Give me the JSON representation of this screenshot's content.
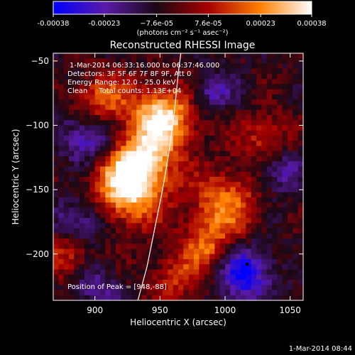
{
  "chart_data": {
    "type": "heatmap",
    "title": "Reconstructed RHESSI Image",
    "xlabel": "Heliocentric X (arcsec)",
    "ylabel": "Heliocentric Y (arcsec)",
    "xlim": [
      868,
      1060
    ],
    "ylim": [
      -236,
      -44
    ],
    "xticks": [
      900,
      950,
      1000,
      1050
    ],
    "yticks": [
      -200,
      -150,
      -100,
      -50
    ],
    "colorbar": {
      "min": -0.00038,
      "max": 0.00038,
      "tick_values": [
        -0.00038,
        -0.00023,
        -7.6e-05,
        7.6e-05,
        0.00023,
        0.00038
      ],
      "tick_labels": [
        "-0.00038",
        "-0.00023",
        "−7.6e-05",
        "7.6e-05",
        "0.00023",
        "0.00038"
      ],
      "units_text": "(photons cm⁻² s⁻¹ asec⁻²)"
    },
    "annotations": [
      "1-Mar-2014 06:33:16.000  to 06:37:46.000",
      "Detectors: 3F 5F 6F 7F 8F 9F, Att 0",
      "Energy Range: 12.0 - 25.0 keV",
      "Clean     Total counts: 1.13E+04"
    ],
    "peak_label": "Position of Peak = [948,-88]",
    "peak": [
      948,
      -88
    ],
    "limb_curve": [
      [
        933,
        -236
      ],
      [
        940,
        -210
      ],
      [
        946,
        -180
      ],
      [
        952,
        -150
      ],
      [
        957,
        -120
      ],
      [
        961,
        -90
      ],
      [
        964,
        -60
      ],
      [
        966,
        -44
      ]
    ],
    "hot_regions": [
      {
        "x": 952,
        "y": -95,
        "amp": 1.0,
        "r": 18
      },
      {
        "x": 925,
        "y": -150,
        "amp": 0.9,
        "r": 20
      },
      {
        "x": 935,
        "y": -130,
        "amp": 0.7,
        "r": 16
      },
      {
        "x": 905,
        "y": -80,
        "amp": 0.6,
        "r": 14
      },
      {
        "x": 1000,
        "y": -160,
        "amp": 0.65,
        "r": 18
      },
      {
        "x": 985,
        "y": -195,
        "amp": 0.55,
        "r": 14
      },
      {
        "x": 1030,
        "y": -110,
        "amp": 0.45,
        "r": 14
      },
      {
        "x": 880,
        "y": -200,
        "amp": 0.45,
        "r": 14
      },
      {
        "x": 960,
        "y": -220,
        "amp": 0.4,
        "r": 14
      }
    ],
    "cool_regions": [
      {
        "x": 1015,
        "y": -215,
        "amp": 0.95,
        "r": 14
      },
      {
        "x": 895,
        "y": -110,
        "amp": 0.7,
        "r": 14
      },
      {
        "x": 890,
        "y": -175,
        "amp": 0.6,
        "r": 14
      },
      {
        "x": 1040,
        "y": -135,
        "amp": 0.55,
        "r": 12
      },
      {
        "x": 990,
        "y": -75,
        "amp": 0.5,
        "r": 12
      },
      {
        "x": 900,
        "y": -225,
        "amp": 0.45,
        "r": 12
      }
    ]
  },
  "timestamp": "1-Mar-2014 08:44"
}
